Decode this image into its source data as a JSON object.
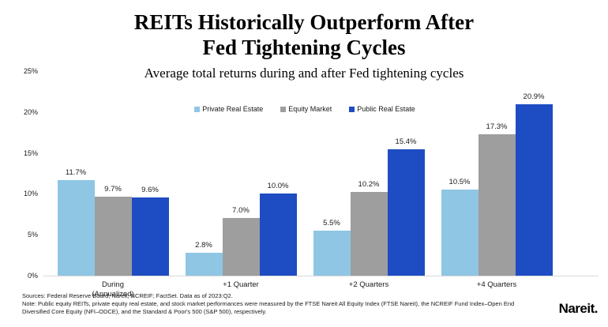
{
  "page": {
    "title_line1": "REITs Historically Outperform After",
    "title_line2": "Fed Tightening Cycles",
    "subtitle": "Average total returns during and after Fed tightening cycles"
  },
  "footer": {
    "sources": "Sources: Federal Reserve Board; Nareit; NCREIF; FactSet. Data as of 2023:Q2.",
    "note": "Note: Public equity REITs, private equity real estate, and stock market performances were measured by the FTSE Nareit All Equity Index (FTSE Nareit), the NCREIF Fund Index–Open End Diversified Core Equity (NFI–ODCE), and the Standard & Poor's 500 (S&P 500), respectively.",
    "logo": "Nareit."
  },
  "chart_data": {
    "type": "bar",
    "title": "REITs Historically Outperform After Fed Tightening Cycles",
    "subtitle": "Average total returns during and after Fed tightening cycles",
    "categories": [
      "During\n(Annualized)",
      "+1 Quarter",
      "+2 Quarters",
      "+4 Quarters"
    ],
    "series": [
      {
        "name": "Private Real Estate",
        "color": "#8FC6E4",
        "values": [
          11.7,
          2.8,
          5.5,
          10.5
        ]
      },
      {
        "name": "Equity Market",
        "color": "#9E9E9E",
        "values": [
          9.7,
          7.0,
          10.2,
          17.3
        ]
      },
      {
        "name": "Public Real Estate",
        "color": "#1E4CC2",
        "values": [
          9.6,
          10.0,
          15.4,
          20.9
        ]
      }
    ],
    "value_label_format": "{v}%",
    "yticks": [
      0,
      5,
      10,
      15,
      20,
      25
    ],
    "ytick_labels": [
      "0%",
      "5%",
      "10%",
      "15%",
      "20%",
      "25%"
    ],
    "ylim": [
      0,
      25
    ],
    "grid": false,
    "legend_position": "top-center",
    "axis_line_color": "#d9d9d9"
  }
}
